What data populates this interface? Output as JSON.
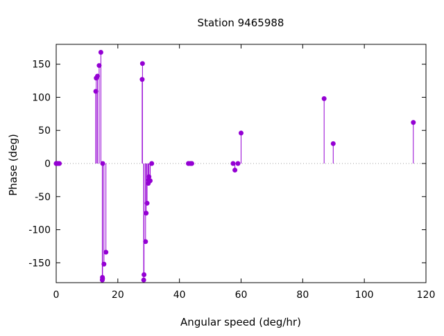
{
  "chart_data": {
    "type": "scatter",
    "style": "impulses-with-points",
    "title": "Station 9465988",
    "xlabel": "Angular speed (deg/hr)",
    "ylabel": "Phase (deg)",
    "xlim": [
      0,
      120
    ],
    "ylim": [
      -180,
      180
    ],
    "x_ticks": [
      0,
      20,
      40,
      60,
      80,
      100,
      120
    ],
    "y_ticks": [
      -150,
      -100,
      -50,
      0,
      50,
      100,
      150
    ],
    "grid": false,
    "zero_line": "dotted",
    "color": "#9400d3",
    "series": [
      {
        "points": [
          {
            "x": 0.0,
            "y": 0
          },
          {
            "x": 0.04,
            "y": 0
          },
          {
            "x": 0.08,
            "y": 0
          },
          {
            "x": 0.5,
            "y": 0
          },
          {
            "x": 1.02,
            "y": 0
          },
          {
            "x": 12.85,
            "y": 109
          },
          {
            "x": 13.0,
            "y": 129
          },
          {
            "x": 13.4,
            "y": 132
          },
          {
            "x": 13.94,
            "y": 148
          },
          {
            "x": 14.5,
            "y": 168
          },
          {
            "x": 14.96,
            "y": -176
          },
          {
            "x": 15.0,
            "y": -172
          },
          {
            "x": 15.04,
            "y": -174
          },
          {
            "x": 15.1,
            "y": 0
          },
          {
            "x": 15.5,
            "y": -152
          },
          {
            "x": 16.14,
            "y": -134
          },
          {
            "x": 27.9,
            "y": 127
          },
          {
            "x": 28.0,
            "y": 151
          },
          {
            "x": 28.4,
            "y": -176
          },
          {
            "x": 28.5,
            "y": -168
          },
          {
            "x": 29.0,
            "y": -118
          },
          {
            "x": 29.2,
            "y": -75
          },
          {
            "x": 29.5,
            "y": -60
          },
          {
            "x": 29.9,
            "y": -30
          },
          {
            "x": 30.0,
            "y": -25
          },
          {
            "x": 30.1,
            "y": -20
          },
          {
            "x": 30.5,
            "y": -26
          },
          {
            "x": 31.0,
            "y": 0
          },
          {
            "x": 42.9,
            "y": 0
          },
          {
            "x": 43.5,
            "y": 0
          },
          {
            "x": 44.0,
            "y": 0
          },
          {
            "x": 57.4,
            "y": 0
          },
          {
            "x": 58.0,
            "y": -10
          },
          {
            "x": 58.98,
            "y": 0
          },
          {
            "x": 60.0,
            "y": 46
          },
          {
            "x": 86.95,
            "y": 98
          },
          {
            "x": 89.9,
            "y": 30
          },
          {
            "x": 115.9,
            "y": 62
          }
        ]
      }
    ]
  }
}
